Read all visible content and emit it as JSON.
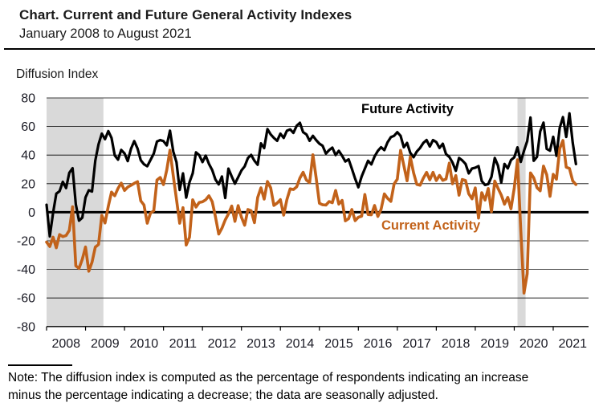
{
  "header": {
    "title": "Chart. Current and Future General Activity Indexes",
    "subtitle": "January 2008 to August 2021"
  },
  "axis_label": "Diffusion Index",
  "colors": {
    "future_line": "#000000",
    "current_line": "#C2621A",
    "recession_band": "#D9D9D9",
    "axis_text": "#1a1a24"
  },
  "note": {
    "lines": [
      "Note: The diffusion index is computed as the percentage of respondents indicating an increase",
      "minus the percentage indicating a decrease; the data are seasonally adjusted."
    ]
  },
  "chart_data": {
    "type": "line",
    "title": "Chart. Current and Future General Activity Indexes",
    "date_range": "January 2008 to August 2021",
    "ylabel": "Diffusion Index",
    "ylim": [
      -80,
      80
    ],
    "yticks": [
      80,
      60,
      40,
      20,
      0,
      -20,
      -40,
      -60,
      -80
    ],
    "grid": "horizontal",
    "x_start": "2008-01",
    "x_end": "2021-08",
    "x_tick_years": [
      2008,
      2009,
      2010,
      2011,
      2012,
      2013,
      2014,
      2015,
      2016,
      2017,
      2018,
      2019,
      2020,
      2021
    ],
    "recession_bands": [
      {
        "from": "2008-01",
        "to": "2009-06"
      },
      {
        "from": "2020-02",
        "to": "2020-04"
      }
    ],
    "series": [
      {
        "name": "Future Activity",
        "color": "#000000",
        "values": [
          5.2,
          -16.9,
          -0.5,
          13.0,
          14.7,
          21.3,
          16.9,
          27.6,
          30.8,
          5.6,
          -5.9,
          -3.8,
          10.4,
          15.4,
          14.5,
          36.2,
          47.5,
          55.0,
          51.1,
          56.8,
          52.0,
          39.8,
          36.8,
          43.6,
          41.2,
          35.8,
          44.5,
          49.8,
          44.6,
          36.4,
          33.6,
          32.2,
          36.5,
          41.0,
          49.5,
          50.5,
          49.8,
          46.8,
          57.1,
          42.5,
          35.0,
          15.6,
          27.2,
          10.2,
          21.0,
          27.2,
          41.9,
          40.0,
          35.1,
          39.6,
          33.9,
          29.5,
          22.9,
          19.5,
          25.0,
          10.0,
          30.5,
          25.0,
          20.0,
          24.5,
          29.2,
          32.1,
          38.0,
          40.1,
          36.0,
          33.2,
          48.2,
          44.9,
          58.2,
          54.5,
          52.0,
          50.0,
          55.0,
          52.0,
          57.0,
          58.0,
          55.5,
          60.5,
          62.6,
          56.0,
          54.5,
          50.0,
          53.5,
          50.5,
          48.0,
          46.5,
          41.0,
          43.5,
          45.2,
          40.0,
          43.0,
          39.5,
          35.5,
          37.0,
          30.5,
          23.5,
          17.5,
          25.0,
          30.5,
          36.0,
          33.5,
          39.0,
          43.0,
          45.5,
          43.5,
          49.0,
          52.5,
          53.5,
          56.0,
          53.5,
          45.5,
          48.5,
          41.5,
          38.5,
          42.5,
          45.0,
          48.5,
          50.5,
          46.0,
          50.5,
          49.1,
          45.0,
          47.9,
          40.7,
          38.7,
          34.8,
          29.0,
          38.0,
          36.3,
          33.8,
          27.2,
          30.6,
          31.2,
          32.3,
          21.8,
          19.1,
          19.7,
          24.8,
          38.0,
          32.6,
          20.8,
          33.8,
          30.7,
          36.5,
          38.4,
          45.4,
          35.2,
          43.0,
          49.7,
          66.3,
          36.0,
          38.8,
          56.6,
          62.7,
          44.3,
          43.1,
          52.8,
          39.5,
          59.1,
          66.6,
          52.7,
          69.2,
          48.6,
          33.7
        ]
      },
      {
        "name": "Current Activity",
        "color": "#C2621A",
        "values": [
          -20.9,
          -24.0,
          -17.4,
          -24.9,
          -15.6,
          -17.1,
          -16.3,
          -12.7,
          3.8,
          -37.5,
          -39.3,
          -32.9,
          -24.3,
          -41.3,
          -35.0,
          -24.4,
          -22.6,
          -2.2,
          -7.5,
          4.2,
          14.1,
          11.5,
          16.7,
          20.4,
          15.2,
          17.6,
          18.9,
          20.2,
          21.4,
          8.0,
          5.1,
          -7.7,
          -0.7,
          1.0,
          22.5,
          24.3,
          19.3,
          29.6,
          43.4,
          25.5,
          9.0,
          -7.7,
          3.2,
          -23.0,
          -17.5,
          8.7,
          3.6,
          6.8,
          7.3,
          8.7,
          11.5,
          7.4,
          -3.1,
          -15.3,
          -11.2,
          -5.4,
          -1.2,
          4.3,
          -6.4,
          4.6,
          -3.5,
          -9.1,
          1.9,
          1.0,
          -7.3,
          10.3,
          17.1,
          9.2,
          21.5,
          17.1,
          4.8,
          6.4,
          8.8,
          -2.0,
          8.8,
          16.4,
          15.9,
          17.8,
          23.9,
          28.0,
          22.5,
          20.7,
          40.2,
          24.3,
          6.3,
          5.2,
          5.0,
          7.5,
          6.7,
          15.2,
          5.7,
          8.3,
          -6.0,
          -4.5,
          1.9,
          -5.9,
          -3.5,
          -2.8,
          12.4,
          -1.6,
          -1.8,
          4.7,
          -2.9,
          2.0,
          12.8,
          9.7,
          7.6,
          19.7,
          23.1,
          43.3,
          32.8,
          22.0,
          38.8,
          27.6,
          19.5,
          18.9,
          23.8,
          27.9,
          22.7,
          27.9,
          22.2,
          25.8,
          22.3,
          23.2,
          34.4,
          19.9,
          25.7,
          11.9,
          22.9,
          22.2,
          12.9,
          9.4,
          17.0,
          -4.1,
          13.7,
          8.5,
          16.6,
          0.3,
          21.8,
          16.8,
          12.0,
          5.6,
          10.4,
          2.4,
          17.0,
          36.7,
          -12.7,
          -56.6,
          -43.1,
          27.5,
          24.1,
          17.2,
          15.0,
          32.3,
          26.3,
          11.1,
          26.5,
          23.1,
          44.5,
          50.2,
          31.5,
          30.7,
          21.9,
          19.4
        ]
      }
    ]
  }
}
